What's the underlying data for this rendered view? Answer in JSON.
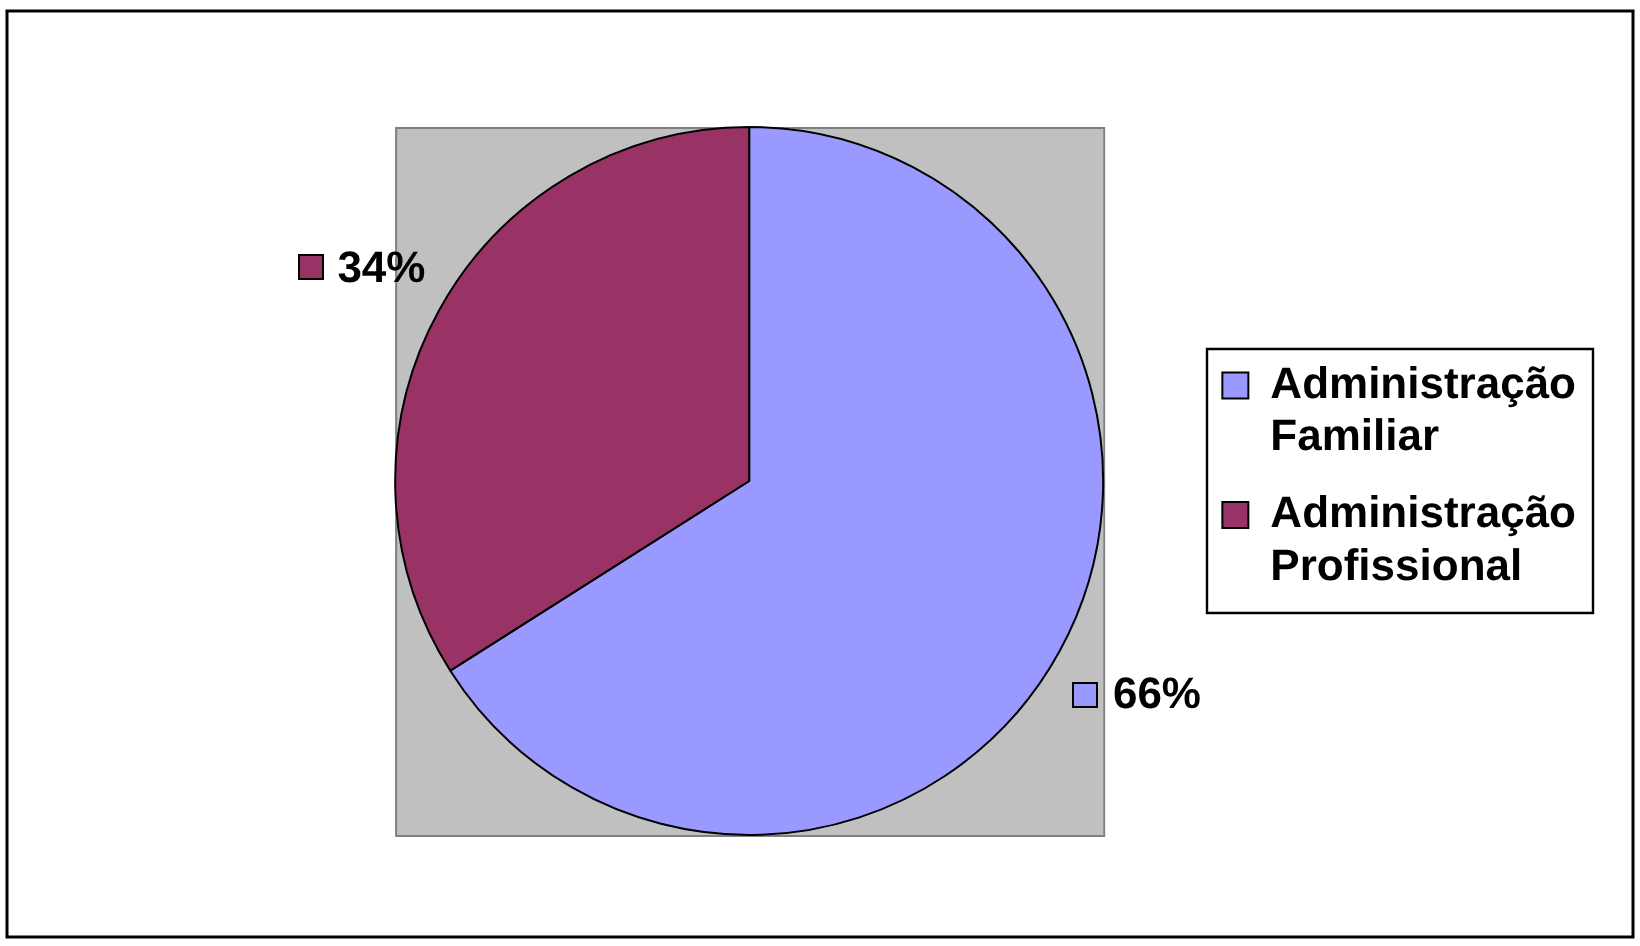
{
  "chart_data": {
    "type": "pie",
    "categories": [
      "Administração Familiar",
      "Administração Profissional"
    ],
    "values": [
      66,
      34
    ],
    "colors": [
      "#9999ff",
      "#993366"
    ],
    "value_labels": [
      "66%",
      "34%"
    ],
    "legend": "right"
  }
}
